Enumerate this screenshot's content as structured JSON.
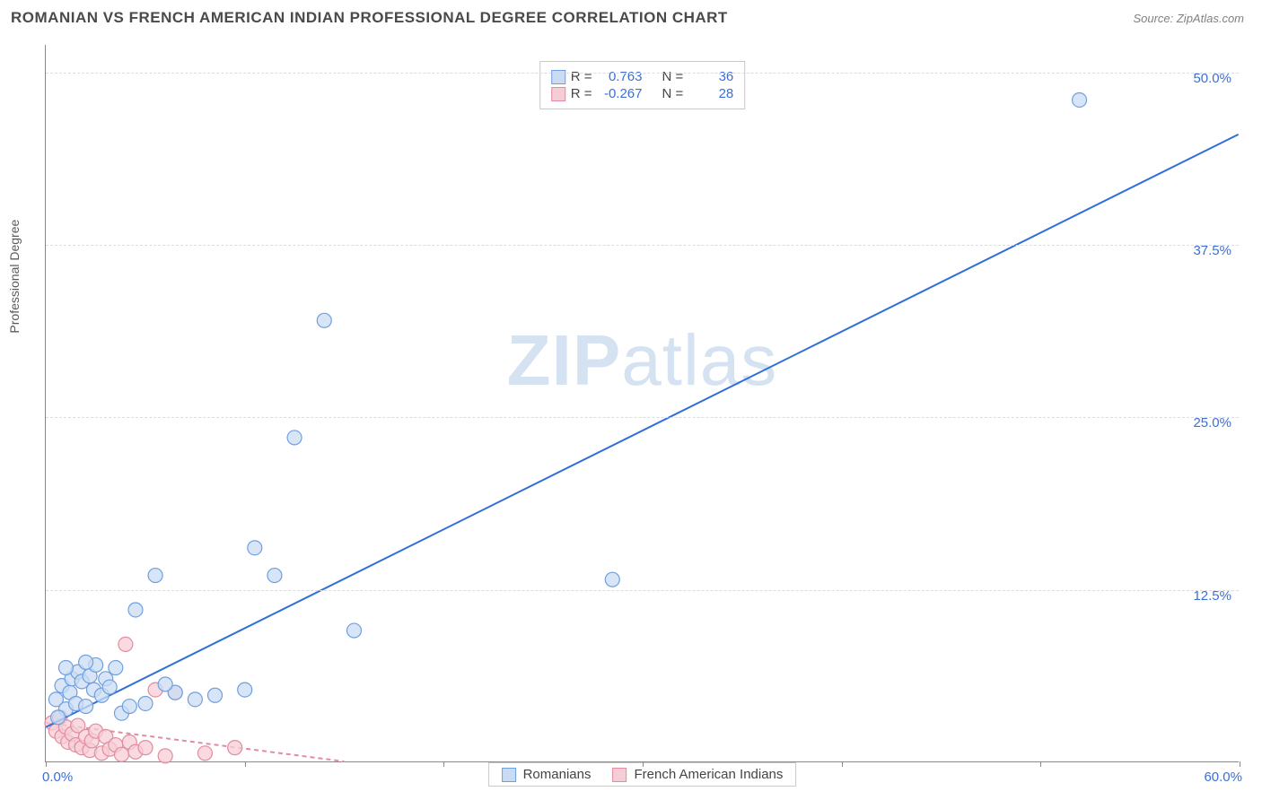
{
  "title": "ROMANIAN VS FRENCH AMERICAN INDIAN PROFESSIONAL DEGREE CORRELATION CHART",
  "source": "Source: ZipAtlas.com",
  "ylabel": "Professional Degree",
  "watermark_a": "ZIP",
  "watermark_b": "atlas",
  "chart": {
    "type": "scatter",
    "background_color": "#ffffff",
    "grid_color": "#dcdcdc",
    "axis_color": "#888888",
    "label_color": "#3b6fd6",
    "xlim": [
      0,
      60
    ],
    "ylim": [
      0,
      52
    ],
    "xticks": [
      0,
      10,
      20,
      30,
      40,
      50,
      60
    ],
    "ygrid": [
      12.5,
      25.0,
      37.5,
      50.0
    ],
    "x_start_label": "0.0%",
    "x_end_label": "60.0%",
    "ygrid_labels": [
      "12.5%",
      "25.0%",
      "37.5%",
      "50.0%"
    ],
    "marker_radius": 8,
    "marker_stroke_width": 1.2,
    "line_width": 2,
    "series": [
      {
        "name": "Romanians",
        "fill": "#c9dcf4",
        "stroke": "#6f9fe0",
        "line_color": "#2f6fd6",
        "line_dash": "none",
        "r_label": "R  =",
        "r_value": "0.763",
        "n_label": "N  =",
        "n_value": "36",
        "regression": {
          "x1": 0,
          "y1": 2.5,
          "x2": 60,
          "y2": 45.5
        },
        "points": [
          [
            0.5,
            4.5
          ],
          [
            0.8,
            5.5
          ],
          [
            1.0,
            3.8
          ],
          [
            1.2,
            5.0
          ],
          [
            1.3,
            6.0
          ],
          [
            1.5,
            4.2
          ],
          [
            1.6,
            6.5
          ],
          [
            1.8,
            5.8
          ],
          [
            2.0,
            4.0
          ],
          [
            2.2,
            6.2
          ],
          [
            2.4,
            5.2
          ],
          [
            2.5,
            7.0
          ],
          [
            2.8,
            4.8
          ],
          [
            3.0,
            6.0
          ],
          [
            3.2,
            5.4
          ],
          [
            3.5,
            6.8
          ],
          [
            3.8,
            3.5
          ],
          [
            4.5,
            11.0
          ],
          [
            5.0,
            4.2
          ],
          [
            5.5,
            13.5
          ],
          [
            6.5,
            5.0
          ],
          [
            7.5,
            4.5
          ],
          [
            8.5,
            4.8
          ],
          [
            10.0,
            5.2
          ],
          [
            10.5,
            15.5
          ],
          [
            11.5,
            13.5
          ],
          [
            12.5,
            23.5
          ],
          [
            14.0,
            32.0
          ],
          [
            15.5,
            9.5
          ],
          [
            28.5,
            13.2
          ],
          [
            52.0,
            48.0
          ],
          [
            1.0,
            6.8
          ],
          [
            0.6,
            3.2
          ],
          [
            2.0,
            7.2
          ],
          [
            4.2,
            4.0
          ],
          [
            6.0,
            5.6
          ]
        ]
      },
      {
        "name": "French American Indians",
        "fill": "#f5cdd6",
        "stroke": "#e38ba0",
        "line_color": "#e38ba0",
        "line_dash": "5,4",
        "r_label": "R  =",
        "r_value": "-0.267",
        "n_label": "N  =",
        "n_value": "28",
        "regression": {
          "x1": 0,
          "y1": 2.8,
          "x2": 15,
          "y2": 0.0
        },
        "points": [
          [
            0.3,
            2.8
          ],
          [
            0.5,
            2.2
          ],
          [
            0.7,
            3.2
          ],
          [
            0.8,
            1.8
          ],
          [
            1.0,
            2.5
          ],
          [
            1.1,
            1.4
          ],
          [
            1.3,
            2.0
          ],
          [
            1.5,
            1.2
          ],
          [
            1.6,
            2.6
          ],
          [
            1.8,
            1.0
          ],
          [
            2.0,
            1.8
          ],
          [
            2.2,
            0.8
          ],
          [
            2.3,
            1.5
          ],
          [
            2.5,
            2.2
          ],
          [
            2.8,
            0.6
          ],
          [
            3.0,
            1.8
          ],
          [
            3.2,
            0.9
          ],
          [
            3.5,
            1.2
          ],
          [
            3.8,
            0.5
          ],
          [
            4.0,
            8.5
          ],
          [
            4.2,
            1.4
          ],
          [
            4.5,
            0.7
          ],
          [
            5.0,
            1.0
          ],
          [
            5.5,
            5.2
          ],
          [
            6.0,
            0.4
          ],
          [
            6.5,
            5.0
          ],
          [
            8.0,
            0.6
          ],
          [
            9.5,
            1.0
          ]
        ]
      }
    ]
  },
  "legend": {
    "series_a": "Romanians",
    "series_b": "French American Indians"
  }
}
